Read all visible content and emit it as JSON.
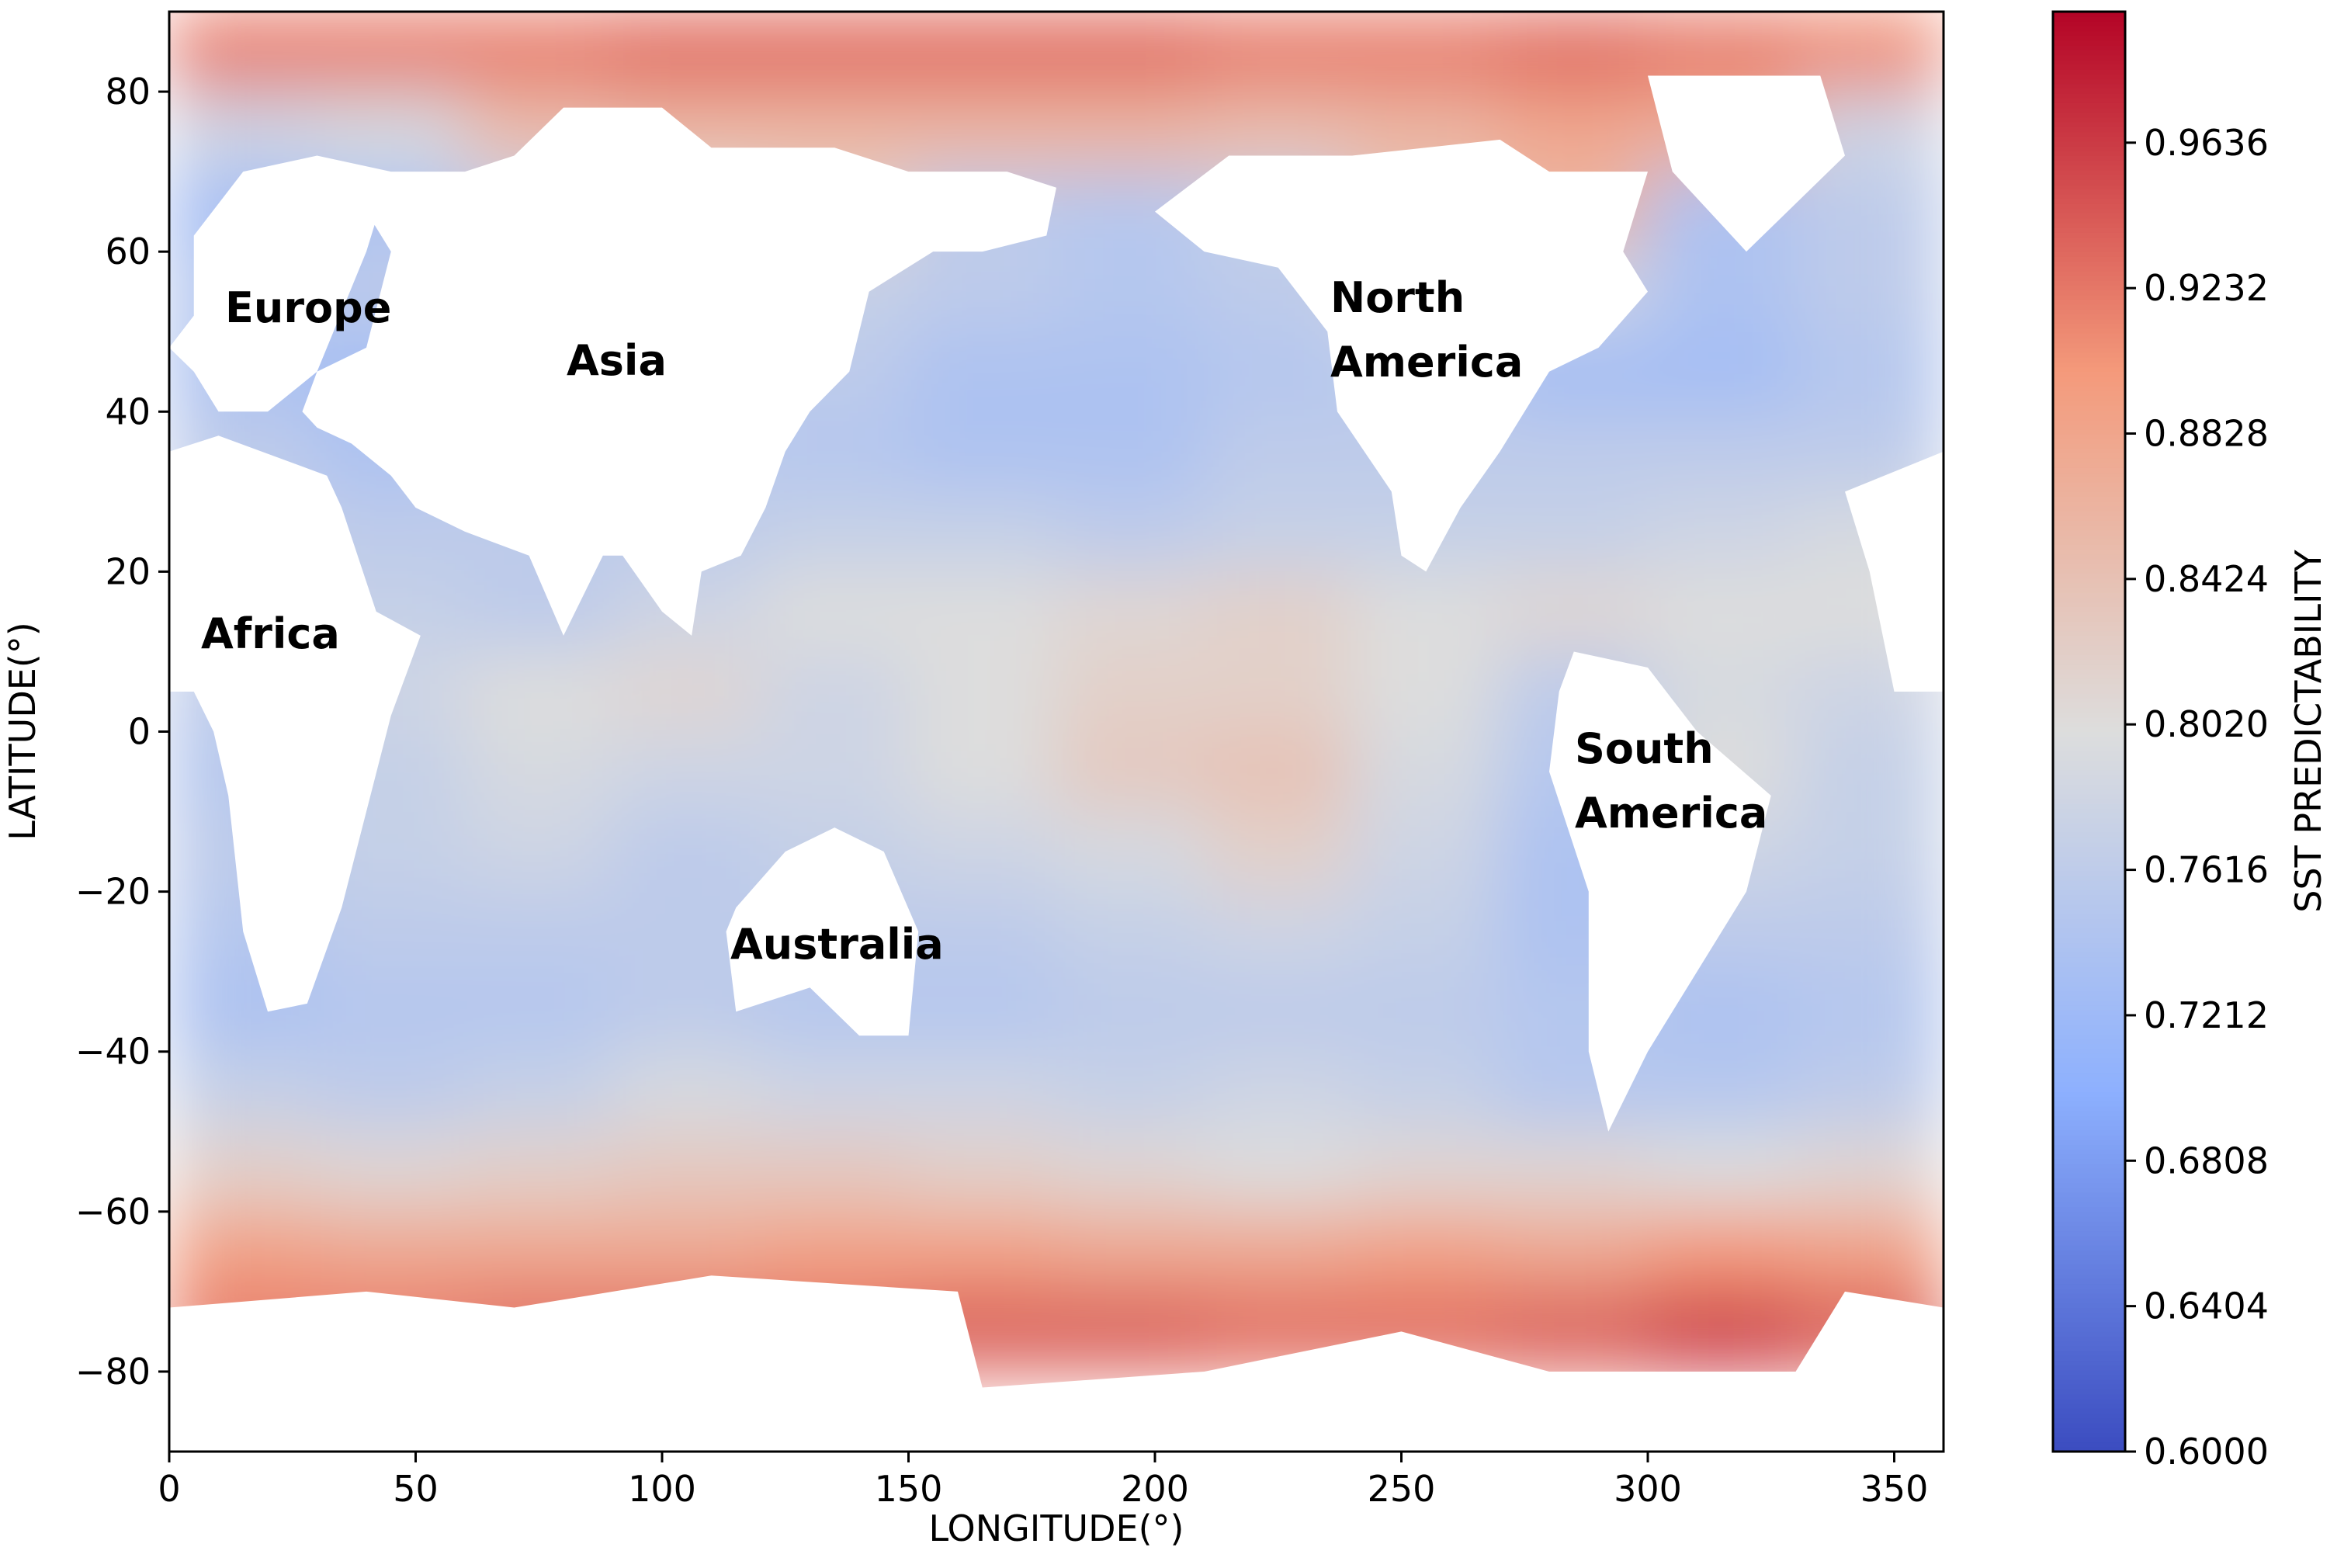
{
  "chart_data": {
    "type": "heatmap",
    "xlabel": "LONGITUDE(°)",
    "ylabel": "LATITUDE(°)",
    "xlim": [
      0,
      360
    ],
    "ylim": [
      -90,
      90
    ],
    "xticks": [
      0,
      50,
      100,
      150,
      200,
      250,
      300,
      350
    ],
    "yticks": [
      {
        "value": -80,
        "label": "−80"
      },
      {
        "value": -60,
        "label": "−60"
      },
      {
        "value": -40,
        "label": "−40"
      },
      {
        "value": -20,
        "label": "−20"
      },
      0,
      20,
      40,
      60,
      80
    ],
    "x": [
      15,
      45,
      75,
      105,
      135,
      165,
      195,
      225,
      255,
      285,
      315,
      345
    ],
    "y": [
      85,
      75,
      65,
      55,
      45,
      35,
      25,
      15,
      5,
      -5,
      -15,
      -25,
      -35,
      -45,
      -55,
      -65,
      -75,
      -85
    ],
    "values": [
      [
        0.92,
        0.92,
        0.92,
        0.93,
        0.93,
        0.93,
        0.93,
        0.92,
        0.92,
        0.93,
        0.92,
        0.91
      ],
      [
        0.78,
        0.79,
        0.85,
        0.86,
        0.86,
        0.86,
        0.86,
        0.85,
        0.86,
        0.88,
        0.87,
        0.78
      ],
      [
        0.73,
        0.74,
        0.77,
        0.8,
        0.82,
        0.76,
        0.75,
        0.77,
        0.84,
        0.86,
        0.74,
        0.76
      ],
      [
        0.75,
        0.76,
        0.77,
        0.76,
        0.77,
        0.76,
        0.75,
        0.76,
        0.8,
        0.78,
        0.74,
        0.76
      ],
      [
        0.74,
        0.73,
        0.75,
        0.76,
        0.76,
        0.74,
        0.74,
        0.75,
        0.76,
        0.73,
        0.73,
        0.75
      ],
      [
        0.76,
        0.74,
        0.76,
        0.76,
        0.75,
        0.74,
        0.74,
        0.76,
        0.76,
        0.76,
        0.76,
        0.76
      ],
      [
        0.77,
        0.76,
        0.76,
        0.76,
        0.77,
        0.77,
        0.76,
        0.77,
        0.77,
        0.77,
        0.78,
        0.79
      ],
      [
        0.78,
        0.77,
        0.76,
        0.78,
        0.8,
        0.8,
        0.81,
        0.82,
        0.8,
        0.81,
        0.8,
        0.8
      ],
      [
        0.76,
        0.78,
        0.8,
        0.81,
        0.78,
        0.8,
        0.82,
        0.82,
        0.8,
        0.76,
        0.79,
        0.78
      ],
      [
        0.75,
        0.77,
        0.79,
        0.78,
        0.78,
        0.8,
        0.83,
        0.84,
        0.79,
        0.75,
        0.8,
        0.77
      ],
      [
        0.76,
        0.77,
        0.78,
        0.76,
        0.77,
        0.78,
        0.79,
        0.82,
        0.78,
        0.74,
        0.78,
        0.77
      ],
      [
        0.75,
        0.76,
        0.76,
        0.76,
        0.76,
        0.76,
        0.77,
        0.78,
        0.77,
        0.74,
        0.76,
        0.76
      ],
      [
        0.74,
        0.75,
        0.75,
        0.76,
        0.75,
        0.75,
        0.76,
        0.76,
        0.76,
        0.75,
        0.74,
        0.75
      ],
      [
        0.77,
        0.76,
        0.77,
        0.79,
        0.78,
        0.78,
        0.77,
        0.78,
        0.77,
        0.75,
        0.75,
        0.76
      ],
      [
        0.82,
        0.81,
        0.82,
        0.83,
        0.83,
        0.82,
        0.81,
        0.8,
        0.81,
        0.81,
        0.8,
        0.81
      ],
      [
        0.89,
        0.88,
        0.88,
        0.88,
        0.89,
        0.89,
        0.88,
        0.88,
        0.89,
        0.88,
        0.9,
        0.89
      ],
      [
        0.92,
        0.92,
        0.93,
        0.93,
        0.93,
        0.94,
        0.94,
        0.93,
        0.93,
        0.94,
        0.96,
        0.94
      ],
      [
        null,
        null,
        null,
        null,
        null,
        null,
        null,
        null,
        null,
        null,
        null,
        null
      ]
    ],
    "colormap": "coolwarm",
    "colorbar_label": "SST PREDICTABILITY",
    "clim": [
      0.6,
      1.0
    ],
    "colorbar_ticks": [
      {
        "value": 0.6,
        "label": "0.6000"
      },
      {
        "value": 0.6404,
        "label": "0.6404"
      },
      {
        "value": 0.6808,
        "label": "0.6808"
      },
      {
        "value": 0.7212,
        "label": "0.7212"
      },
      {
        "value": 0.7616,
        "label": "0.7616"
      },
      {
        "value": 0.802,
        "label": "0.8020"
      },
      {
        "value": 0.8424,
        "label": "0.8424"
      },
      {
        "value": 0.8828,
        "label": "0.8828"
      },
      {
        "value": 0.9232,
        "label": "0.9232"
      },
      {
        "value": 0.9636,
        "label": "0.9636"
      }
    ],
    "annotations": [
      [
        "Europe"
      ],
      [
        "Asia"
      ],
      [
        "Africa"
      ],
      [
        "North",
        "America"
      ],
      [
        "South",
        "America"
      ],
      [
        "Australia"
      ]
    ]
  }
}
